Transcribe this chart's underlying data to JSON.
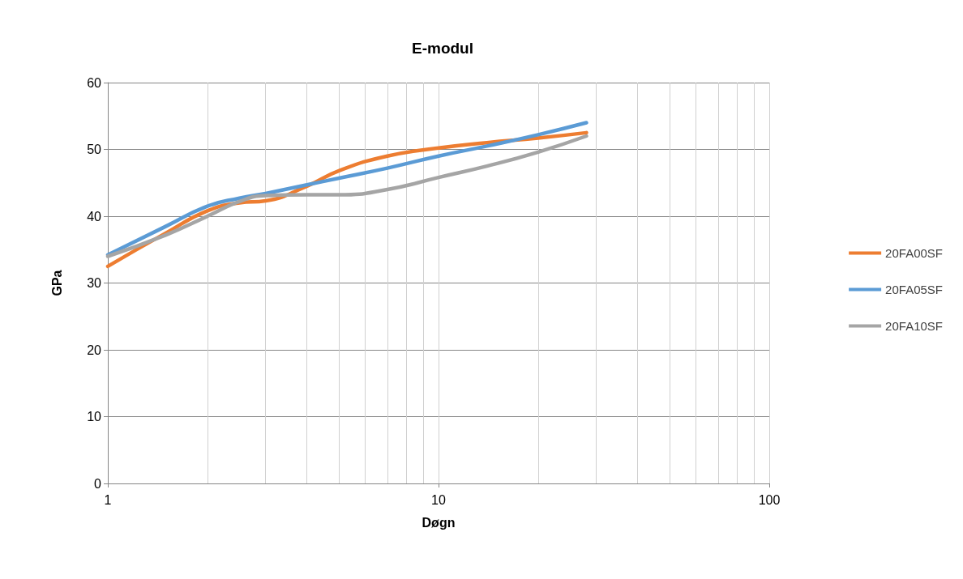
{
  "chart_data": {
    "type": "line",
    "title": "E-modul",
    "xlabel": "Døgn",
    "ylabel": "GPa",
    "log": "x",
    "grid": true,
    "legend": "right",
    "marker": "none",
    "line_style": "solid",
    "xlim": [
      1,
      100
    ],
    "xticks": [
      1,
      10,
      100
    ],
    "ylim": [
      0,
      60
    ],
    "yticks": [
      0,
      10,
      20,
      30,
      40,
      50,
      60
    ],
    "x": [
      1,
      1.5,
      2,
      2.5,
      3,
      4,
      5,
      7,
      10,
      14,
      20,
      28
    ],
    "series": [
      {
        "name": "20FA00SF",
        "color": "#ed7d31",
        "values": [
          32.5,
          37.5,
          40.8,
          42,
          42.3,
          44.5,
          46.8,
          49,
          50.2,
          51,
          51.7,
          52.5
        ]
      },
      {
        "name": "20FA05SF",
        "color": "#5b9bd5",
        "values": [
          34.2,
          38.5,
          41.5,
          42.7,
          43.4,
          44.7,
          45.7,
          47.2,
          49,
          50.5,
          52.2,
          54
        ]
      },
      {
        "name": "20FA10SF",
        "color": "#a5a5a5",
        "values": [
          34,
          37.2,
          40,
          42.2,
          43.1,
          43.2,
          43.2,
          44,
          45.8,
          47.5,
          49.6,
          52
        ]
      }
    ]
  }
}
